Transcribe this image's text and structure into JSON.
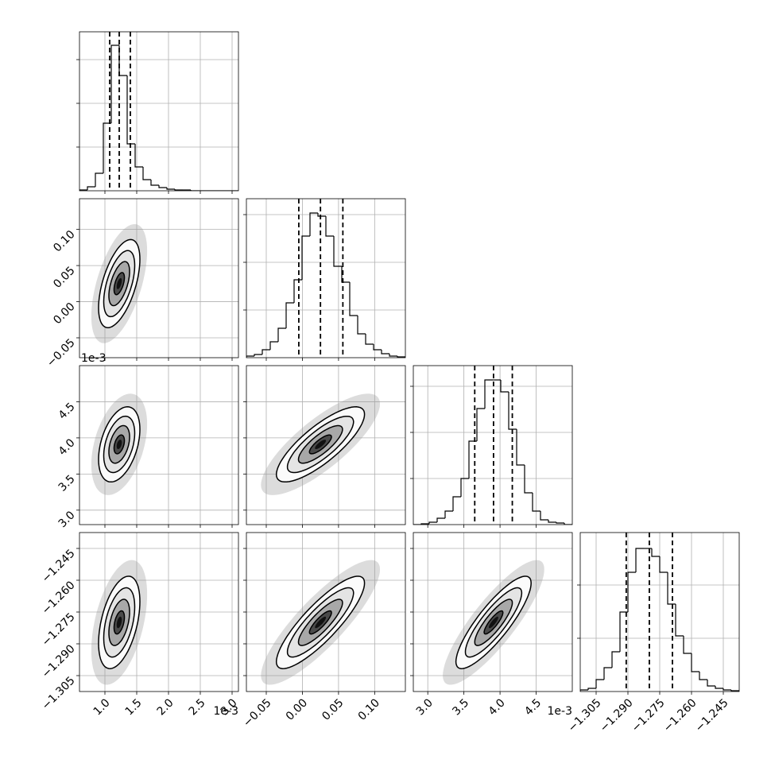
{
  "chart_data": {
    "type": "corner",
    "grid": true,
    "color": "#000000",
    "params": [
      {
        "lim": [
          0.6,
          3.1
        ],
        "ticks": [
          {
            "value": 1.0,
            "label": "1.0"
          },
          {
            "value": 1.5,
            "label": "1.5"
          },
          {
            "value": 2.0,
            "label": "2.0"
          },
          {
            "value": 2.5,
            "label": "2.5"
          },
          {
            "value": 3.0,
            "label": "3.0"
          }
        ],
        "offset": "1e-3",
        "quantiles": [
          1.075,
          1.225,
          1.4
        ],
        "bins": [
          0.6,
          0.725,
          0.85,
          0.975,
          1.1,
          1.225,
          1.35,
          1.475,
          1.6,
          1.725,
          1.85,
          1.975,
          2.1,
          2.225,
          2.35,
          2.475,
          2.6,
          2.725,
          2.85,
          2.975,
          3.1
        ],
        "counts": [
          1,
          5,
          22,
          85,
          183,
          145,
          59,
          30,
          14,
          7,
          4,
          2,
          1,
          1,
          0,
          0,
          0,
          0,
          0,
          0
        ],
        "hist_ylim": [
          0,
          200
        ],
        "hist_yticks": [
          55,
          110,
          165
        ]
      },
      {
        "lim": [
          -0.0775,
          0.1425
        ],
        "ticks": [
          {
            "value": -0.05,
            "label": "−0.05"
          },
          {
            "value": 0.0,
            "label": "0.00"
          },
          {
            "value": 0.05,
            "label": "0.05"
          },
          {
            "value": 0.1,
            "label": "0.10"
          }
        ],
        "quantiles": [
          -0.005,
          0.025,
          0.056
        ],
        "bins": [
          -0.0775,
          -0.0665,
          -0.0555,
          -0.0445,
          -0.0335,
          -0.0225,
          -0.0115,
          -0.0005,
          0.0105,
          0.0215,
          0.0325,
          0.0435,
          0.0545,
          0.0655,
          0.0765,
          0.0875,
          0.0985,
          0.1095,
          0.1205,
          0.1315,
          0.1425
        ],
        "counts": [
          2,
          4,
          10,
          20,
          37,
          69,
          98,
          153,
          182,
          178,
          153,
          115,
          95,
          53,
          30,
          17,
          10,
          5,
          2,
          1
        ],
        "hist_ylim": [
          0,
          200
        ],
        "hist_yticks": [
          60,
          120,
          180
        ]
      },
      {
        "lim": [
          2.8,
          5.0
        ],
        "ticks": [
          {
            "value": 3.0,
            "label": "3.0"
          },
          {
            "value": 3.5,
            "label": "3.5"
          },
          {
            "value": 4.0,
            "label": "4.0"
          },
          {
            "value": 4.5,
            "label": "4.5"
          }
        ],
        "offset": "1e-3",
        "quantiles": [
          3.65,
          3.91,
          4.17
        ],
        "bins": [
          2.8,
          2.91,
          3.02,
          3.13,
          3.24,
          3.35,
          3.46,
          3.57,
          3.68,
          3.79,
          3.9,
          4.01,
          4.12,
          4.23,
          4.34,
          4.45,
          4.56,
          4.67,
          4.78,
          4.89,
          5.0
        ],
        "counts": [
          0,
          1,
          3,
          8,
          17,
          35,
          58,
          105,
          146,
          182,
          182,
          167,
          120,
          75,
          40,
          17,
          6,
          3,
          2,
          0
        ],
        "hist_ylim": [
          0,
          200
        ],
        "hist_yticks": [
          58,
          116,
          174
        ]
      },
      {
        "lim": [
          -1.3125,
          -1.2375
        ],
        "ticks": [
          {
            "value": -1.305,
            "label": "−1.305"
          },
          {
            "value": -1.29,
            "label": "−1.290"
          },
          {
            "value": -1.275,
            "label": "−1.275"
          },
          {
            "value": -1.26,
            "label": "−1.260"
          },
          {
            "value": -1.245,
            "label": "−1.245"
          }
        ],
        "quantiles": [
          -1.2908,
          -1.2799,
          -1.269
        ],
        "bins": [
          -1.3125,
          -1.30875,
          -1.305,
          -1.30125,
          -1.2975,
          -1.29375,
          -1.29,
          -1.28625,
          -1.2825,
          -1.27875,
          -1.275,
          -1.27125,
          -1.2675,
          -1.26375,
          -1.26,
          -1.25625,
          -1.2525,
          -1.24875,
          -1.245,
          -1.24125,
          -1.2375
        ],
        "counts": [
          2,
          4,
          15,
          30,
          50,
          100,
          150,
          180,
          180,
          170,
          150,
          110,
          70,
          48,
          25,
          15,
          7,
          4,
          2,
          1
        ],
        "hist_ylim": [
          0,
          200
        ],
        "hist_yticks": [
          67,
          134
        ]
      }
    ],
    "pairs": [
      {
        "x": 0,
        "y": 1,
        "corr": 0.55
      },
      {
        "x": 0,
        "y": 2,
        "corr": 0.4
      },
      {
        "x": 1,
        "y": 2,
        "corr": 0.8
      },
      {
        "x": 0,
        "y": 3,
        "corr": 0.45
      },
      {
        "x": 1,
        "y": 3,
        "corr": 0.85
      },
      {
        "x": 2,
        "y": 3,
        "corr": 0.85
      }
    ]
  }
}
